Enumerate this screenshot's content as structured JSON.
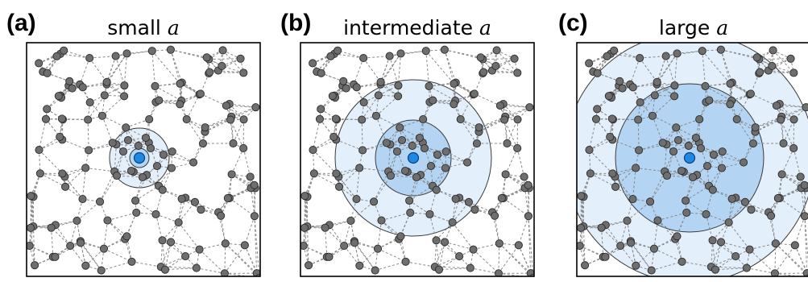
{
  "figure": {
    "panels": [
      {
        "letter": "(a)",
        "title_text": "small ",
        "title_var": "a",
        "scale": "small"
      },
      {
        "letter": "(b)",
        "title_text": "intermediate ",
        "title_var": "a",
        "scale": "intermediate"
      },
      {
        "letter": "(c)",
        "title_text": "large ",
        "title_var": "a",
        "scale": "large"
      }
    ],
    "colors": {
      "node_fill": "#6e6e6e",
      "node_stroke": "#2b2b2b",
      "edge": "#8a8a8a",
      "center_node": "#1e88e5",
      "outer_disc": "#e3f0fb",
      "inner_disc": "#b3d4f2",
      "disc_stroke": "#3a3a3a",
      "frame": "#000000"
    }
  }
}
